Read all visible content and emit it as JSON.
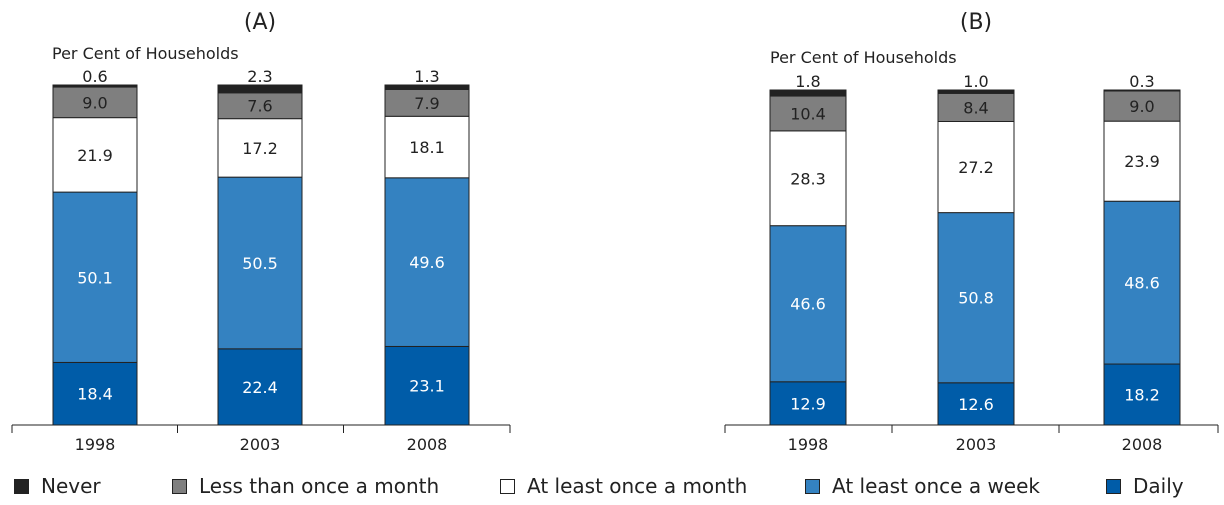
{
  "chart_data": [
    {
      "type": "bar",
      "stacked": true,
      "title": "(A)",
      "ylabel": "Per Cent of Households",
      "categories": [
        "1998",
        "2003",
        "2008"
      ],
      "ylim": [
        0,
        100
      ],
      "series": [
        {
          "name": "Daily",
          "values": [
            18.4,
            22.4,
            23.1
          ]
        },
        {
          "name": "At least once a week",
          "values": [
            50.1,
            50.5,
            49.6
          ]
        },
        {
          "name": "At least once a month",
          "values": [
            21.9,
            17.2,
            18.1
          ]
        },
        {
          "name": "Less than once a month",
          "values": [
            9.0,
            7.6,
            7.9
          ]
        },
        {
          "name": "Never",
          "values": [
            0.6,
            2.3,
            1.3
          ]
        }
      ],
      "data_labels": [
        [
          "18.4",
          "50.1",
          "21.9",
          "9.0",
          "0.6"
        ],
        [
          "22.4",
          "50.5",
          "17.2",
          "7.6",
          "2.3"
        ],
        [
          "23.1",
          "49.6",
          "18.1",
          "7.9",
          "1.3"
        ]
      ]
    },
    {
      "type": "bar",
      "stacked": true,
      "title": "(B)",
      "ylabel": "Per Cent of Households",
      "categories": [
        "1998",
        "2003",
        "2008"
      ],
      "ylim": [
        0,
        100
      ],
      "series": [
        {
          "name": "Daily",
          "values": [
            12.9,
            12.6,
            18.2
          ]
        },
        {
          "name": "At least once a week",
          "values": [
            46.6,
            50.8,
            48.6
          ]
        },
        {
          "name": "At least once a month",
          "values": [
            28.3,
            27.2,
            23.9
          ]
        },
        {
          "name": "Less than once a month",
          "values": [
            10.4,
            8.4,
            9.0
          ]
        },
        {
          "name": "Never",
          "values": [
            1.8,
            1.0,
            0.3
          ]
        }
      ],
      "data_labels": [
        [
          "12.9",
          "46.6",
          "28.3",
          "10.4",
          "1.8"
        ],
        [
          "12.6",
          "50.8",
          "27.2",
          "8.4",
          "1.0"
        ],
        [
          "18.2",
          "48.6",
          "23.9",
          "9.0",
          "0.3"
        ]
      ]
    }
  ],
  "legend": {
    "placement": "bottom",
    "items": [
      {
        "label": "Never",
        "color": "#222222"
      },
      {
        "label": "Less than once a month",
        "color": "#7f7f7f"
      },
      {
        "label": "At least once a month",
        "color": "#ffffff"
      },
      {
        "label": "At least once a week",
        "color": "#3482c1"
      },
      {
        "label": "Daily",
        "color": "#005ca8"
      }
    ]
  },
  "colors": {
    "Daily": "#005ca8",
    "At least once a week": "#3482c1",
    "At least once a month": "#ffffff",
    "Less than once a month": "#7f7f7f",
    "Never": "#222222",
    "label_light": "#ffffff",
    "label_dark": "#222222"
  }
}
